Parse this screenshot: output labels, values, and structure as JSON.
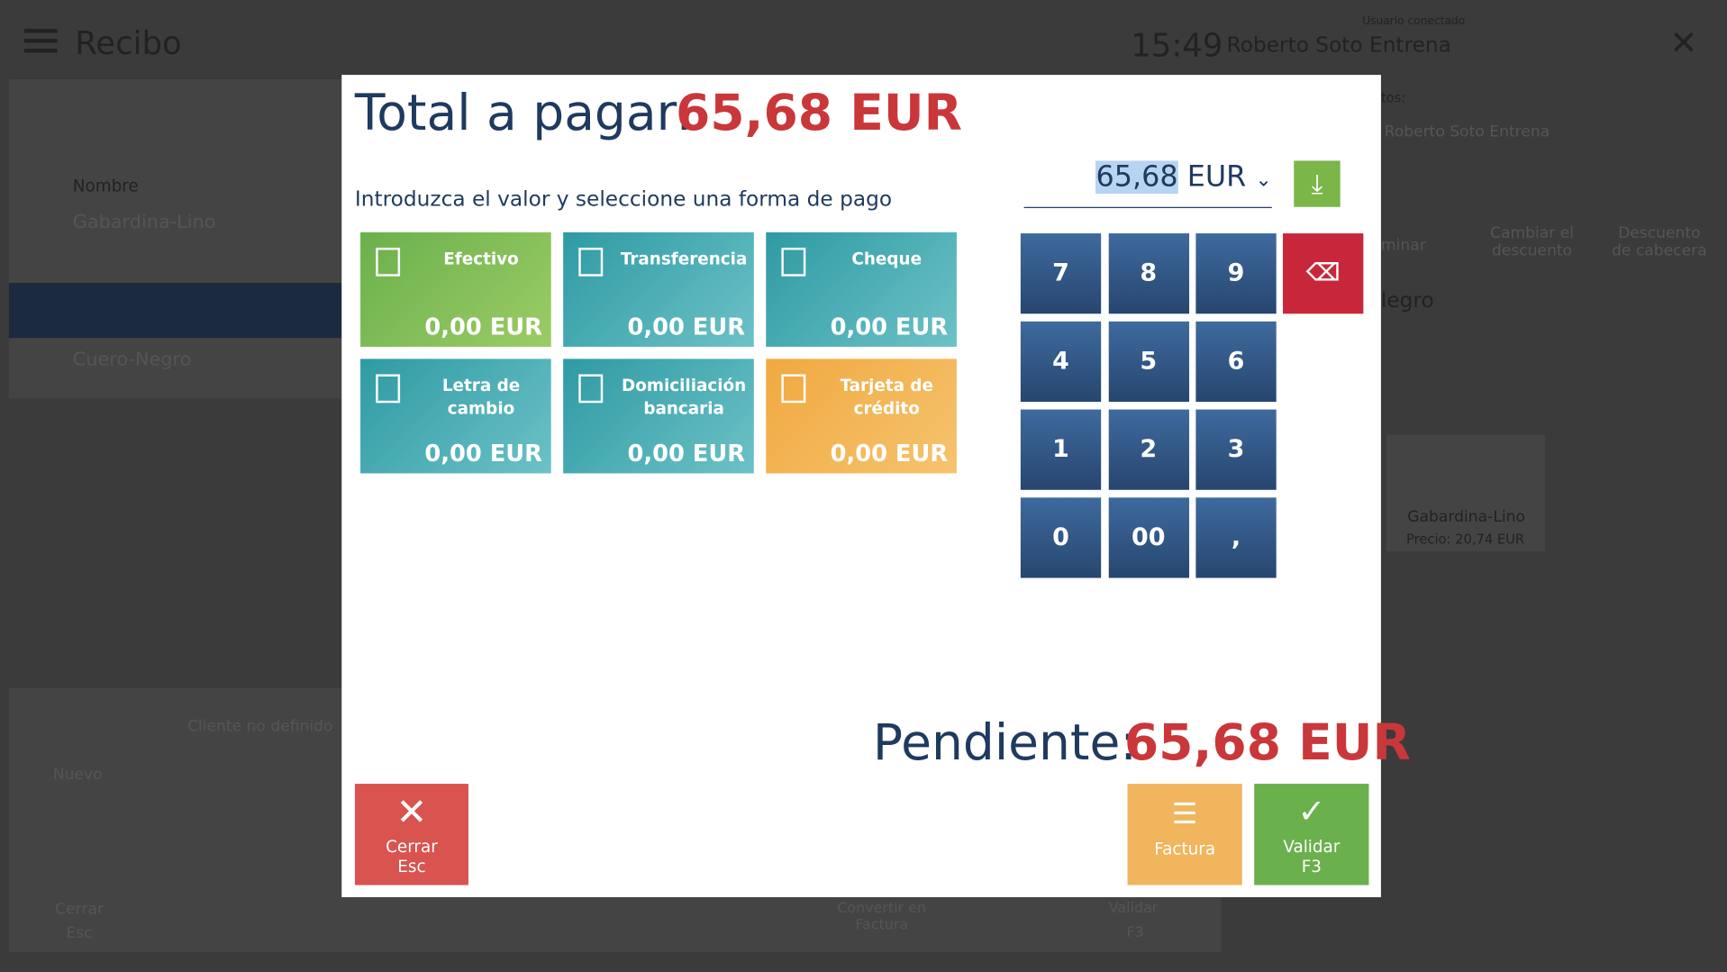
{
  "header": {
    "title": "Recibo",
    "time": "15:49",
    "user_label": "Usuario conectado",
    "user": "Roberto Soto Entrena"
  },
  "background": {
    "column_header": "Nombre",
    "items": [
      "Gabardina-Lino",
      "Cuero-Negro"
    ],
    "client": "Cliente no definido",
    "new": "Nuevo",
    "close": "Cerrar",
    "close_key": "Esc",
    "seller_label": "tos:",
    "seller": "Roberto Soto Entrena",
    "actions": [
      "minar",
      "Cambiar el descuento",
      "Descuento de cabecera"
    ],
    "product_title": "legro",
    "product_name": "Gabardina-Lino",
    "product_price": "Precio: 20,74 EUR",
    "convert": "Convertir en Factura",
    "validate": "Validar",
    "validate_key": "F3"
  },
  "dialog": {
    "total_label": "Total a pagar:",
    "total_amount": "65,68",
    "total_currency": "EUR",
    "instruction": "Introduzca el valor y seleccione una forma de pago",
    "input_value": "65,68",
    "input_currency": "EUR",
    "methods": [
      {
        "name": "Efectivo",
        "amount": "0,00 EUR"
      },
      {
        "name": "Transferencia",
        "amount": "0,00 EUR"
      },
      {
        "name": "Cheque",
        "amount": "0,00 EUR"
      },
      {
        "name": "Letra de cambio",
        "amount": "0,00 EUR"
      },
      {
        "name": "Domiciliación bancaria",
        "amount": "0,00 EUR"
      },
      {
        "name": "Tarjeta de crédito",
        "amount": "0,00 EUR"
      }
    ],
    "keys": [
      "7",
      "8",
      "9",
      "4",
      "5",
      "6",
      "1",
      "2",
      "3",
      "0",
      "00",
      ","
    ],
    "pending_label": "Pendiente:",
    "pending_amount": "65,68",
    "pending_currency": "EUR",
    "close": "Cerrar",
    "close_key": "Esc",
    "invoice": "Factura",
    "validate": "Validar",
    "validate_key": "F3"
  }
}
